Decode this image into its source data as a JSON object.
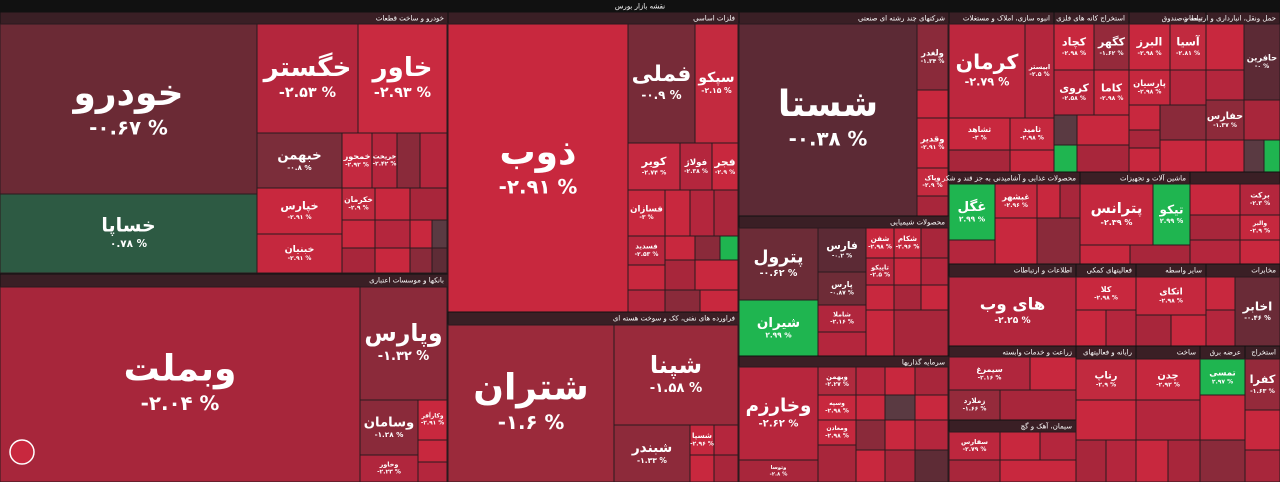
{
  "header": {
    "title": "نقشه بازار بورس"
  },
  "sectors": [
    {
      "title": "خودرو و ساخت قطعات",
      "tiles": [
        {
          "symbol": "خودرو",
          "change": "-۰.۶۷ %",
          "color": "#6b2a35"
        },
        {
          "symbol": "خساپا",
          "change": "۰.۷۸ %",
          "color": "#2d5a43"
        },
        {
          "symbol": "خگستر",
          "change": "-۲.۵۳ %",
          "color": "#b4263d"
        },
        {
          "symbol": "خاور",
          "change": "-۲.۹۳ %",
          "color": "#c92a40"
        },
        {
          "symbol": "خبهمن",
          "change": "-۰.۸ %",
          "color": "#7b2d3a"
        },
        {
          "symbol": "خمحور",
          "change": "-۲.۹۲ %",
          "color": "#c42940"
        },
        {
          "symbol": "خریخت",
          "change": "-۲.۴۲ %",
          "color": "#b5263d"
        },
        {
          "symbol": "خپارس",
          "change": "-۲.۹۱ %",
          "color": "#c8283e"
        },
        {
          "symbol": "خبنیان",
          "change": "-۲.۹۱ %",
          "color": "#c5283e"
        },
        {
          "symbol": "خکرمان",
          "change": "-۲.۹ %",
          "color": "#c12a3f"
        }
      ]
    },
    {
      "title": "بانکها و موسسات اعتباری",
      "tiles": [
        {
          "symbol": "وبملت",
          "change": "-۲.۰۴ %",
          "color": "#a7263b"
        },
        {
          "symbol": "وپارس",
          "change": "-۱.۳۲ %",
          "color": "#8b2a3a"
        },
        {
          "symbol": "وسامان",
          "change": "-۱.۲۸ %",
          "color": "#8a2a3a"
        },
        {
          "symbol": "وخاور",
          "change": "-۲.۲۳ %",
          "color": "#b0263d"
        },
        {
          "symbol": "وکارآفر",
          "change": "-۲.۹۱ %",
          "color": "#c8283e"
        }
      ]
    },
    {
      "title": "فلزات اساسی",
      "tiles": [
        {
          "symbol": "ذوب",
          "change": "-۲.۹۱ %",
          "color": "#c8283e"
        },
        {
          "symbol": "فملی",
          "change": "-۰.۹ %",
          "color": "#772b38"
        },
        {
          "symbol": "سپکو",
          "change": "-۲.۱۵ %",
          "color": "#c32a3f"
        },
        {
          "symbol": "کویر",
          "change": "-۲.۷۴ %",
          "color": "#c42940"
        },
        {
          "symbol": "فولاژ",
          "change": "-۲.۳۸ %",
          "color": "#b4263d"
        },
        {
          "symbol": "فجر",
          "change": "-۲.۹ %",
          "color": "#c8283e"
        },
        {
          "symbol": "فسازان",
          "change": "-۳ %",
          "color": "#c8283e"
        },
        {
          "symbol": "فسدید",
          "change": "-۲.۵۳ %",
          "color": "#b8263d"
        }
      ]
    },
    {
      "title": "فراورده های نفتی، کک و سوخت هسته ای",
      "tiles": [
        {
          "symbol": "شتران",
          "change": "-۱.۶ %",
          "color": "#9b2a3b"
        },
        {
          "symbol": "شپنا",
          "change": "-۱.۵۸ %",
          "color": "#992a3b"
        },
        {
          "symbol": "شبندر",
          "change": "-۱.۳۳ %",
          "color": "#8d2a3a"
        },
        {
          "symbol": "شسپا",
          "change": "-۲.۹۶ %",
          "color": "#c5283e"
        }
      ]
    },
    {
      "title": "شرکتهای چند رشته ای صنعتی",
      "tiles": [
        {
          "symbol": "شستا",
          "change": "-۰.۳۸ %",
          "color": "#5c2a35"
        },
        {
          "symbol": "ولغدر",
          "change": "-۱.۳۴ %",
          "color": "#8a2a3a"
        },
        {
          "symbol": "وقدیر",
          "change": "-۲.۹۱ %",
          "color": "#c8283e"
        },
        {
          "symbol": "وپاک",
          "change": "-۲.۹ %",
          "color": "#c52a3f"
        }
      ]
    },
    {
      "title": "محصولات شیمیایی",
      "tiles": [
        {
          "symbol": "پترول",
          "change": "-۰.۶۲ %",
          "color": "#6c2c37"
        },
        {
          "symbol": "شیران",
          "change": "۲.۹۹ %",
          "color": "#1fb550"
        },
        {
          "symbol": "فارس",
          "change": "-۰.۲ %",
          "color": "#5c2a35"
        },
        {
          "symbol": "شفن",
          "change": "-۲.۹۸ %",
          "color": "#c8283e"
        },
        {
          "symbol": "شکام",
          "change": "-۲.۹۶ %",
          "color": "#c5283e"
        },
        {
          "symbol": "پارس",
          "change": "-۰.۸۷ %",
          "color": "#6e2c37"
        },
        {
          "symbol": "شاملا",
          "change": "-۲.۱۶ %",
          "color": "#b0263d"
        },
        {
          "symbol": "تاپیکو",
          "change": "-۲.۵ %",
          "color": "#b8263d"
        }
      ]
    },
    {
      "title": "سرمایه گذاریها",
      "tiles": [
        {
          "symbol": "وخارزم",
          "change": "-۲.۶۲ %",
          "color": "#b7263d"
        },
        {
          "symbol": "وتوسا",
          "change": "-۲.۸ %",
          "color": "#a8263b"
        },
        {
          "symbol": "وبهمن",
          "change": "-۲.۲۷ %",
          "color": "#b02a3e"
        },
        {
          "symbol": "وسپه",
          "change": "-۲.۹۸ %",
          "color": "#c8283e"
        },
        {
          "symbol": "ومعادن",
          "change": "-۲.۹۸ %",
          "color": "#c5283e"
        }
      ]
    },
    {
      "title": "انبوه سازی، املاک و مستغلات",
      "tiles": [
        {
          "symbol": "کرمان",
          "change": "-۲.۷۹ %",
          "color": "#bd273e"
        },
        {
          "symbol": "ابیستر",
          "change": "-۲.۵ %",
          "color": "#b4263d"
        },
        {
          "symbol": "ثشاهد",
          "change": "-۳ %",
          "color": "#c8283e"
        },
        {
          "symbol": "ثامید",
          "change": "-۲.۹۸ %",
          "color": "#c5283e"
        }
      ]
    },
    {
      "title": "استخراج کانه های فلزی",
      "tiles": [
        {
          "symbol": "کچاد",
          "change": "-۲.۹۸ %",
          "color": "#c8283e"
        },
        {
          "symbol": "کگهر",
          "change": "-۱.۶۲ %",
          "color": "#952a3b"
        },
        {
          "symbol": "کروی",
          "change": "-۲.۵۸ %",
          "color": "#b8263d"
        },
        {
          "symbol": "کاما",
          "change": "-۲.۹۸ %",
          "color": "#c5283e"
        }
      ]
    },
    {
      "title": "بیمه و صندوق",
      "tiles": [
        {
          "symbol": "البرز",
          "change": "-۲.۹۸ %",
          "color": "#c8283e"
        },
        {
          "symbol": "آسیا",
          "change": "-۲.۸۱ %",
          "color": "#c12a3f"
        },
        {
          "symbol": "پارسیان",
          "change": "-۲.۹۸ %",
          "color": "#c5283e"
        }
      ]
    },
    {
      "title": "حمل ونقل، انبارداری و ارتباطات",
      "tiles": [
        {
          "symbol": "حافرین",
          "change": "-۰ %",
          "color": "#5c2a35"
        },
        {
          "symbol": "حفارس",
          "change": "-۱.۳۷ %",
          "color": "#8d2a3a"
        }
      ]
    },
    {
      "title": "محصولات غذایی و آشامیدنی به جز قند و شکر",
      "tiles": [
        {
          "symbol": "غگل",
          "change": "۲.۹۹ %",
          "color": "#1fb550"
        },
        {
          "symbol": "غبشهر",
          "change": "-۲.۹۶ %",
          "color": "#c5283e"
        }
      ]
    },
    {
      "title": "ماشین آلات و تجهیزات",
      "tiles": [
        {
          "symbol": "پترانس",
          "change": "-۲.۳۹ %",
          "color": "#c4283e"
        },
        {
          "symbol": "تیکو",
          "change": "۲.۹۹ %",
          "color": "#1fb550"
        }
      ]
    },
    {
      "tiles": [
        {
          "symbol": "برکت",
          "change": "-۲.۳ %",
          "color": "#b4263d"
        },
        {
          "symbol": "والبر",
          "change": "-۲.۹ %",
          "color": "#c5283e"
        }
      ]
    },
    {
      "title": "اطلاعات و ارتباطات",
      "tiles": [
        {
          "symbol": "های وب",
          "change": "-۲.۲۵ %",
          "color": "#b3263d"
        }
      ]
    },
    {
      "title": "زراعت و خدمات وابسته",
      "tiles": [
        {
          "symbol": "سیمرغ",
          "change": "-۲.۱۶ %",
          "color": "#b0263d"
        },
        {
          "symbol": "زملارد",
          "change": "-۱.۶۶ %",
          "color": "#952a3b"
        }
      ]
    },
    {
      "title": "سیمان، آهک و گچ",
      "tiles": [
        {
          "symbol": "سفارس",
          "change": "-۲.۷۹ %",
          "color": "#bd273e"
        }
      ]
    },
    {
      "title": "فعالیتهای کمکی",
      "tiles": [
        {
          "symbol": "کلا",
          "change": "-۲.۹۸ %",
          "color": "#c8283e"
        }
      ]
    },
    {
      "title": "سایر واسطه",
      "tiles": [
        {
          "symbol": "اتکای",
          "change": "-۲.۹۸ %",
          "color": "#c5283e"
        }
      ]
    },
    {
      "title": "مخابرات",
      "tiles": [
        {
          "symbol": "اخابر",
          "change": "-۰.۴۶ %",
          "color": "#6a2b37"
        }
      ]
    },
    {
      "title": "رایانه و فعالیتهای",
      "tiles": [
        {
          "symbol": "رتاپ",
          "change": "-۲.۹ %",
          "color": "#c12a3f"
        }
      ]
    },
    {
      "title": "ساخت",
      "tiles": [
        {
          "symbol": "چدن",
          "change": "-۲.۹۲ %",
          "color": "#c5283e"
        }
      ]
    },
    {
      "title": "عرضه برق",
      "tiles": [
        {
          "symbol": "تمسی",
          "change": "۲.۹۷ %",
          "color": "#1fb550"
        }
      ]
    },
    {
      "title": "استخراج",
      "tiles": [
        {
          "symbol": "کفرا",
          "change": "-۱.۶۳ %",
          "color": "#952a3b"
        }
      ]
    }
  ]
}
